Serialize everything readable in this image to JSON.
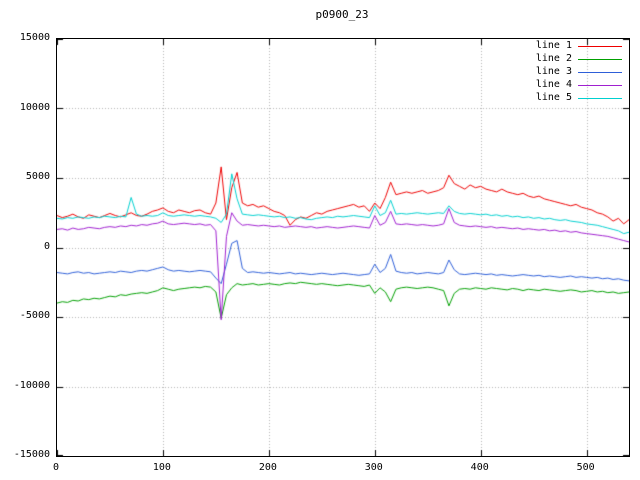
{
  "title": "p0900_23",
  "chart_data": {
    "type": "line",
    "title": "p0900_23",
    "xlabel": "",
    "ylabel": "",
    "xlim": [
      0,
      540
    ],
    "ylim": [
      -15000,
      15000
    ],
    "x_ticks": [
      0,
      100,
      200,
      300,
      400,
      500
    ],
    "y_ticks": [
      -15000,
      -10000,
      -5000,
      0,
      5000,
      10000,
      15000
    ],
    "grid": true,
    "grid_style": "dotted",
    "grid_color": "#b4b4b4",
    "legend_position": "top-right-inside",
    "x_start": 0,
    "x_step": 5,
    "series": [
      {
        "name": "line 1",
        "color": "#ee0000",
        "values": [
          2300,
          2150,
          2250,
          2400,
          2200,
          2100,
          2350,
          2250,
          2150,
          2300,
          2450,
          2300,
          2200,
          2350,
          2500,
          2300,
          2250,
          2400,
          2600,
          2700,
          2850,
          2600,
          2500,
          2700,
          2600,
          2500,
          2650,
          2700,
          2500,
          2400,
          3200,
          5800,
          2000,
          4300,
          5400,
          3200,
          3000,
          3100,
          2900,
          3000,
          2800,
          2600,
          2500,
          2300,
          1600,
          2000,
          2200,
          2100,
          2300,
          2500,
          2400,
          2600,
          2700,
          2800,
          2900,
          3000,
          3100,
          2900,
          3000,
          2600,
          3200,
          2800,
          3600,
          4700,
          3800,
          3900,
          4000,
          3900,
          4000,
          4100,
          3900,
          4000,
          4100,
          4300,
          5200,
          4600,
          4400,
          4200,
          4500,
          4300,
          4400,
          4200,
          4100,
          4000,
          4200,
          4000,
          3900,
          3800,
          3900,
          3700,
          3600,
          3700,
          3500,
          3400,
          3300,
          3200,
          3100,
          3000,
          3100,
          2900,
          2800,
          2700,
          2500,
          2400,
          2200,
          1900,
          2100,
          1700,
          2000
        ]
      },
      {
        "name": "line 2",
        "color": "#00a000",
        "values": [
          -4000,
          -3900,
          -3950,
          -3800,
          -3850,
          -3700,
          -3750,
          -3650,
          -3700,
          -3600,
          -3500,
          -3550,
          -3400,
          -3450,
          -3350,
          -3300,
          -3250,
          -3300,
          -3200,
          -3100,
          -2900,
          -3000,
          -3100,
          -3000,
          -2950,
          -2900,
          -2850,
          -2900,
          -2800,
          -2850,
          -3200,
          -5100,
          -3400,
          -2900,
          -2600,
          -2700,
          -2650,
          -2600,
          -2700,
          -2650,
          -2600,
          -2650,
          -2700,
          -2600,
          -2550,
          -2600,
          -2500,
          -2550,
          -2600,
          -2650,
          -2600,
          -2650,
          -2700,
          -2750,
          -2700,
          -2650,
          -2700,
          -2750,
          -2800,
          -2700,
          -3300,
          -2900,
          -3200,
          -3900,
          -3000,
          -2900,
          -2850,
          -2900,
          -2950,
          -2900,
          -2850,
          -2900,
          -3000,
          -3100,
          -4200,
          -3300,
          -3000,
          -2950,
          -3000,
          -2900,
          -2950,
          -3000,
          -2900,
          -2950,
          -3000,
          -3050,
          -2950,
          -3000,
          -3100,
          -3000,
          -3050,
          -3100,
          -3000,
          -3050,
          -3100,
          -3150,
          -3100,
          -3050,
          -3100,
          -3200,
          -3150,
          -3100,
          -3200,
          -3150,
          -3250,
          -3200,
          -3300,
          -3250,
          -3200
        ]
      },
      {
        "name": "line 3",
        "color": "#2e5fd8",
        "values": [
          -1800,
          -1850,
          -1900,
          -1800,
          -1750,
          -1850,
          -1800,
          -1900,
          -1850,
          -1800,
          -1750,
          -1800,
          -1700,
          -1750,
          -1800,
          -1700,
          -1650,
          -1700,
          -1600,
          -1500,
          -1400,
          -1600,
          -1700,
          -1650,
          -1700,
          -1750,
          -1700,
          -1650,
          -1700,
          -1750,
          -2200,
          -2600,
          -1200,
          300,
          500,
          -1500,
          -1800,
          -1750,
          -1800,
          -1850,
          -1800,
          -1850,
          -1900,
          -1850,
          -1800,
          -1900,
          -1850,
          -1900,
          -1950,
          -1900,
          -1850,
          -1900,
          -1950,
          -1900,
          -1850,
          -1900,
          -1950,
          -2000,
          -1950,
          -1900,
          -1200,
          -1800,
          -1500,
          -500,
          -1700,
          -1800,
          -1850,
          -1800,
          -1900,
          -1850,
          -1800,
          -1850,
          -1900,
          -1800,
          -900,
          -1600,
          -1900,
          -1950,
          -1900,
          -1850,
          -1900,
          -1950,
          -1900,
          -2000,
          -1950,
          -2000,
          -2050,
          -2000,
          -1950,
          -2000,
          -2050,
          -2000,
          -2100,
          -2050,
          -2100,
          -2150,
          -2100,
          -2050,
          -2150,
          -2100,
          -2150,
          -2200,
          -2150,
          -2250,
          -2200,
          -2300,
          -2250,
          -2350,
          -2400
        ]
      },
      {
        "name": "line 4",
        "color": "#a020d0",
        "values": [
          1300,
          1350,
          1250,
          1400,
          1300,
          1350,
          1450,
          1400,
          1350,
          1450,
          1500,
          1450,
          1550,
          1500,
          1600,
          1550,
          1650,
          1600,
          1700,
          1750,
          1900,
          1700,
          1650,
          1700,
          1750,
          1700,
          1650,
          1700,
          1600,
          1650,
          1200,
          -5200,
          800,
          2500,
          1900,
          1600,
          1650,
          1600,
          1550,
          1600,
          1550,
          1500,
          1550,
          1450,
          1500,
          1550,
          1500,
          1450,
          1500,
          1400,
          1450,
          1500,
          1450,
          1400,
          1450,
          1500,
          1550,
          1500,
          1450,
          1400,
          2300,
          1600,
          1800,
          2600,
          1700,
          1650,
          1700,
          1650,
          1600,
          1650,
          1600,
          1550,
          1600,
          1700,
          2800,
          1800,
          1600,
          1550,
          1500,
          1550,
          1500,
          1450,
          1500,
          1400,
          1450,
          1400,
          1350,
          1400,
          1300,
          1350,
          1300,
          1250,
          1300,
          1200,
          1250,
          1150,
          1200,
          1100,
          1150,
          1050,
          1000,
          950,
          900,
          850,
          800,
          700,
          600,
          500,
          400
        ]
      },
      {
        "name": "line 5",
        "color": "#00d0d0",
        "values": [
          2100,
          2050,
          2150,
          2100,
          2200,
          2150,
          2100,
          2200,
          2150,
          2250,
          2200,
          2150,
          2250,
          2200,
          3600,
          2400,
          2250,
          2300,
          2250,
          2300,
          2500,
          2300,
          2250,
          2300,
          2350,
          2300,
          2250,
          2300,
          2250,
          2200,
          2100,
          1800,
          2400,
          5300,
          3500,
          2400,
          2350,
          2300,
          2350,
          2300,
          2250,
          2200,
          2250,
          2150,
          2200,
          2100,
          2150,
          2050,
          2000,
          2100,
          2150,
          2200,
          2150,
          2250,
          2200,
          2250,
          2300,
          2250,
          2200,
          2150,
          3000,
          2300,
          2500,
          3400,
          2400,
          2450,
          2400,
          2450,
          2500,
          2450,
          2400,
          2450,
          2500,
          2450,
          3000,
          2600,
          2450,
          2400,
          2450,
          2400,
          2350,
          2400,
          2300,
          2350,
          2250,
          2300,
          2200,
          2250,
          2150,
          2200,
          2100,
          2150,
          2050,
          2100,
          2000,
          1950,
          2000,
          1900,
          1850,
          1800,
          1700,
          1650,
          1600,
          1500,
          1400,
          1300,
          1200,
          1000,
          1100
        ]
      }
    ]
  }
}
